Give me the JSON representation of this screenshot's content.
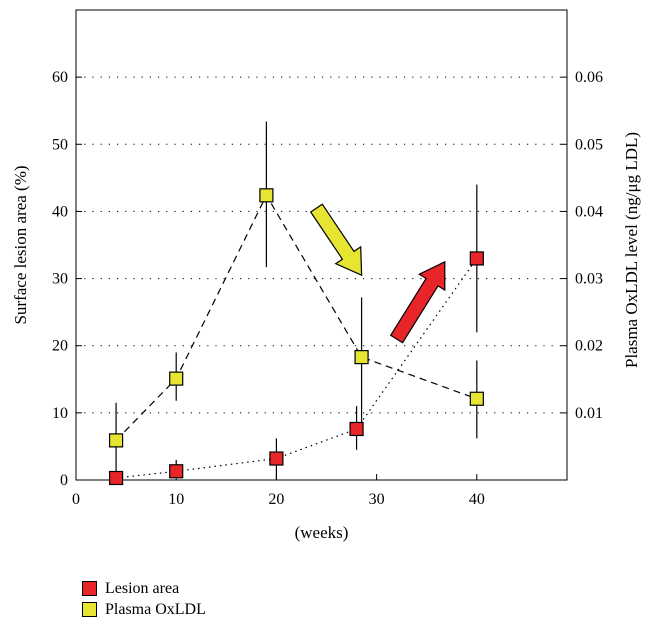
{
  "chart_data": {
    "type": "scatter",
    "xlabel": "(weeks)",
    "ylabel": "Surface lesion area (%)",
    "y2label": "Plasma OxLDL level (ng/μg LDL)",
    "xlim": [
      0,
      49
    ],
    "ylim": [
      0,
      70
    ],
    "y2lim": [
      0,
      0.07
    ],
    "x_ticks": [
      0,
      10,
      20,
      30,
      40
    ],
    "y_ticks": [
      0,
      10,
      20,
      30,
      40,
      50,
      60
    ],
    "y2_ticks": [
      "0.01",
      "0.02",
      "0.03",
      "0.04",
      "0.05",
      "0.06"
    ],
    "y2_tick_values": [
      0.01,
      0.02,
      0.03,
      0.04,
      0.05,
      0.06
    ],
    "grid": "dotted horizontal",
    "legend_position": "bottom-left",
    "series": [
      {
        "name": "Lesion area",
        "axis": "left",
        "color": "#e8262a",
        "line_style": "dotted",
        "x": [
          4,
          10,
          20,
          28,
          40
        ],
        "y": [
          0.3,
          1.3,
          3.2,
          7.6,
          33
        ],
        "err_low": [
          0,
          0.3,
          0,
          4.5,
          22
        ],
        "err_high": [
          0,
          3.0,
          6.2,
          11,
          44
        ]
      },
      {
        "name": "Plasma OxLDL",
        "axis": "right",
        "color": "#e6e632",
        "line_style": "dashed",
        "x": [
          4,
          10,
          19,
          28.5,
          40
        ],
        "y": [
          0.0059,
          0.0151,
          0.0424,
          0.0183,
          0.0121
        ],
        "err_low": [
          0.0003,
          0.0118,
          0.0317,
          0.0067,
          0.0062
        ],
        "err_high": [
          0.0115,
          0.019,
          0.0534,
          0.0272,
          0.0178
        ]
      }
    ],
    "annotations": [
      {
        "kind": "arrow",
        "direction": "down",
        "color": "#e6e632",
        "from": [
          24,
          40.5
        ],
        "to": [
          28.5,
          30.5
        ]
      },
      {
        "kind": "arrow",
        "direction": "up",
        "color": "#e8262a",
        "from": [
          32,
          21
        ],
        "to": [
          36.8,
          32.5
        ]
      }
    ]
  }
}
